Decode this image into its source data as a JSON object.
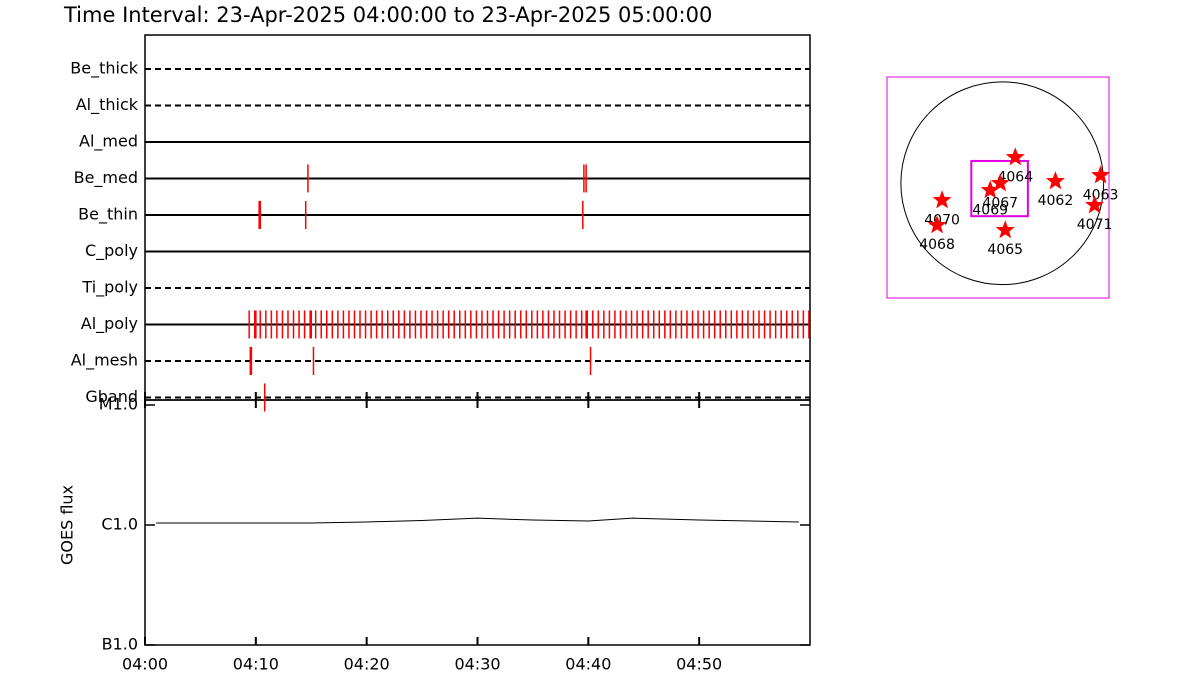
{
  "title": "Time Interval: 23-Apr-2025 04:00:00 to 23-Apr-2025 05:00:00",
  "chart_data": [
    {
      "type": "event",
      "color": "#ff0000",
      "xlim": [
        0,
        60
      ],
      "xticks": [
        0,
        10,
        20,
        30,
        40,
        50
      ],
      "series": [
        {
          "name": "Be_thick",
          "line_style": "dashed",
          "values": []
        },
        {
          "name": "Al_thick",
          "line_style": "dashed",
          "values": []
        },
        {
          "name": "Al_med",
          "line_style": "solid",
          "values": []
        },
        {
          "name": "Be_med",
          "line_style": "solid",
          "values": [
            14.7,
            39.6,
            39.8
          ]
        },
        {
          "name": "Be_thin",
          "line_style": "solid",
          "values": [
            10.3,
            10.4,
            14.5,
            39.5
          ]
        },
        {
          "name": "C_poly",
          "line_style": "solid",
          "values": []
        },
        {
          "name": "Ti_poly",
          "line_style": "dashed",
          "values": []
        },
        {
          "name": "Al_poly",
          "line_style": "solid",
          "values": [
            9.4,
            9.9,
            10.0,
            10.4,
            10.9,
            11.4,
            11.9,
            12.4,
            12.9,
            13.4,
            13.9,
            14.4,
            14.9,
            15.0,
            15.4,
            15.9,
            16.4,
            16.9,
            17.4,
            17.9,
            18.4,
            18.9,
            19.4,
            19.9,
            20.4,
            20.9,
            21.4,
            21.9,
            22.4,
            22.9,
            23.4,
            23.9,
            24.4,
            24.9,
            25.4,
            25.9,
            26.4,
            26.9,
            27.4,
            27.9,
            28.4,
            28.9,
            29.4,
            29.9,
            30.4,
            30.9,
            31.4,
            31.9,
            32.4,
            32.9,
            33.4,
            33.9,
            34.4,
            34.9,
            35.4,
            35.9,
            36.4,
            36.9,
            37.4,
            37.9,
            38.4,
            38.9,
            39.4,
            39.8,
            39.9,
            40.4,
            40.9,
            41.4,
            41.9,
            42.4,
            42.9,
            43.4,
            43.9,
            44.4,
            44.9,
            45.4,
            45.9,
            46.4,
            46.9,
            47.4,
            47.9,
            48.4,
            48.9,
            49.4,
            49.9,
            50.4,
            50.9,
            51.4,
            51.9,
            52.4,
            52.9,
            53.4,
            53.9,
            54.4,
            54.9,
            55.4,
            55.9,
            56.4,
            56.9,
            57.4,
            57.9,
            58.4,
            58.9,
            59.4,
            59.9
          ]
        },
        {
          "name": "Al_mesh",
          "line_style": "dashed",
          "values": [
            9.5,
            9.6,
            15.2,
            40.2
          ]
        },
        {
          "name": "Gband",
          "line_style": "dashed",
          "values": [
            10.8
          ]
        }
      ]
    },
    {
      "type": "line",
      "y_label": "GOES flux",
      "log_scale": true,
      "color": "#000000",
      "xlim": [
        0,
        60
      ],
      "xticks": [
        {
          "value": 0,
          "label": "04:00"
        },
        {
          "value": 10,
          "label": "04:10"
        },
        {
          "value": 20,
          "label": "04:20"
        },
        {
          "value": 30,
          "label": "04:30"
        },
        {
          "value": 40,
          "label": "04:40"
        },
        {
          "value": 50,
          "label": "04:50"
        }
      ],
      "ylim": [
        1e-07,
        1e-05
      ],
      "yticks": [
        {
          "value": 1e-07,
          "label": "B1.0"
        },
        {
          "value": 1e-06,
          "label": "C1.0"
        },
        {
          "value": 1e-05,
          "label": "M1.0"
        }
      ],
      "x": [
        1,
        10,
        15,
        20,
        25,
        30,
        35,
        40,
        44,
        50,
        59
      ],
      "values": [
        1.04e-06,
        1.04e-06,
        1.04e-06,
        1.06e-06,
        1.09e-06,
        1.14e-06,
        1.1e-06,
        1.08e-06,
        1.14e-06,
        1.1e-06,
        1.06e-06
      ]
    },
    {
      "type": "map",
      "box_color": "#e000e0",
      "star_color": "#ff0000",
      "xlim": [
        -1080,
        1000
      ],
      "ylim": [
        -1080,
        1000
      ],
      "sun_radius": 950,
      "fov_x": [
        -290,
        240
      ],
      "fov_y": [
        -310,
        210
      ],
      "labels": [
        "4064",
        "4067",
        "4069",
        "4062",
        "4063",
        "4071",
        "4070",
        "4068",
        "4065"
      ],
      "x": [
        122,
        -19,
        -113,
        498,
        921,
        865,
        -564,
        -611,
        28
      ],
      "y": [
        244,
        0,
        -66,
        19,
        75,
        -207,
        -160,
        -395,
        -442
      ]
    }
  ]
}
